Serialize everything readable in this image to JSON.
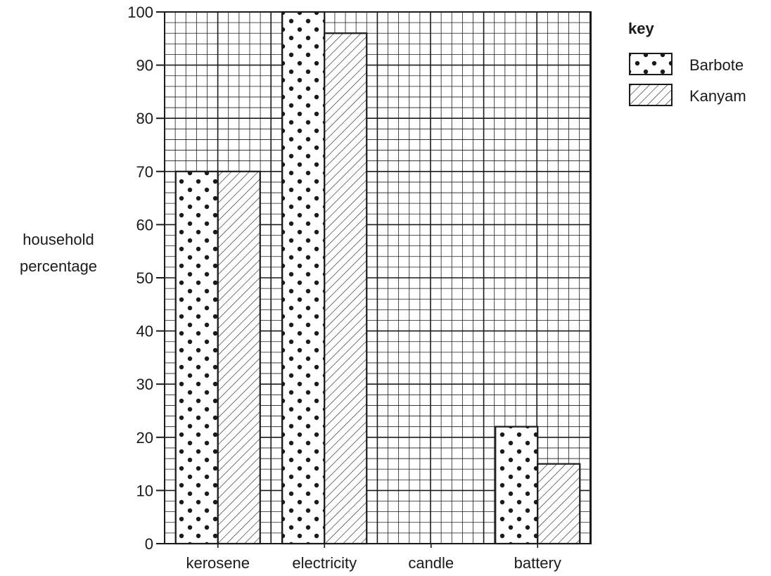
{
  "chart_data": {
    "type": "bar",
    "categories": [
      "kerosene",
      "electricity",
      "candle",
      "battery"
    ],
    "series": [
      {
        "name": "Barbote",
        "values": [
          70,
          100,
          0,
          22
        ],
        "pattern": "dots"
      },
      {
        "name": "Kanyam",
        "values": [
          70,
          96,
          0,
          15
        ],
        "pattern": "hatch"
      }
    ],
    "ylabel": "household\npercentage",
    "ylim": [
      0,
      100
    ],
    "yticks": [
      0,
      10,
      20,
      30,
      40,
      50,
      60,
      70,
      80,
      90,
      100
    ],
    "grid": true,
    "legend": {
      "title": "key",
      "placement": "top-right"
    }
  }
}
